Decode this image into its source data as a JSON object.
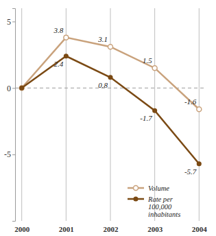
{
  "chart_data": {
    "type": "line",
    "categories": [
      "2000",
      "2001",
      "2002",
      "2003",
      "2004"
    ],
    "series": [
      {
        "name": "Volume",
        "color": "#c9a27c",
        "marker": "circle-open",
        "values": [
          0,
          3.8,
          3.1,
          1.5,
          -1.6
        ],
        "value_labels": [
          null,
          "3.8",
          "3.1",
          "1.5",
          "-1.6"
        ]
      },
      {
        "name": "Rate per 100,000 inhabitants",
        "color": "#7b4a14",
        "marker": "circle",
        "values": [
          0,
          2.4,
          0.8,
          -1.7,
          -5.7
        ],
        "value_labels": [
          null,
          "2.4",
          "0.8",
          "-1.7",
          "-5.7"
        ]
      }
    ],
    "ylim": [
      -10,
      6
    ],
    "yticks": [
      5,
      0,
      -5
    ],
    "grid": "x",
    "data_labels": true,
    "legend": "lower right"
  }
}
